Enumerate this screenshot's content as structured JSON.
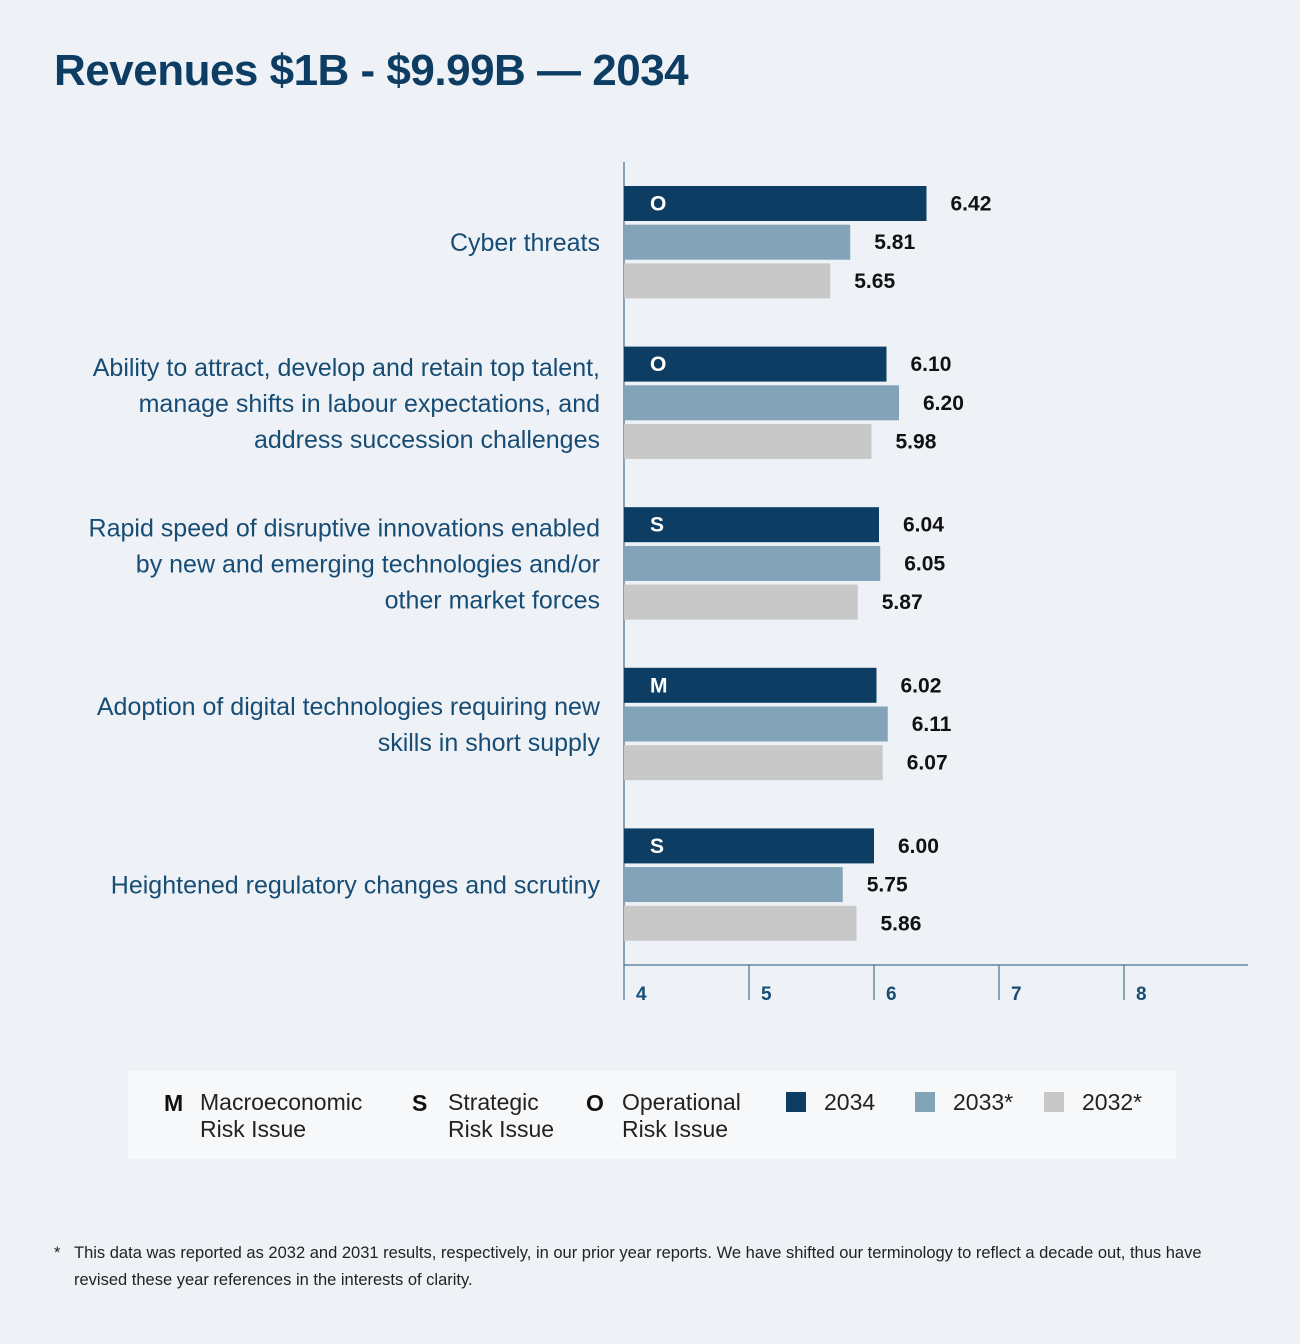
{
  "title": "Revenues $1B - $9.99B — 2034",
  "chart_data": {
    "type": "bar",
    "orientation": "horizontal",
    "categories": [
      [
        "Cyber threats"
      ],
      [
        "Ability to attract, develop and retain top talent,",
        "manage shifts in labour expectations, and",
        "address succession challenges"
      ],
      [
        "Rapid speed of disruptive innovations enabled",
        "by new and emerging technologies and/or",
        "other market forces"
      ],
      [
        "Adoption of digital technologies requiring new",
        "skills in short supply"
      ],
      [
        "Heightened regulatory changes and scrutiny"
      ]
    ],
    "risk_type": [
      "O",
      "O",
      "S",
      "M",
      "S"
    ],
    "series": [
      {
        "name": "2034",
        "color": "#0d3d63",
        "values": [
          6.42,
          6.1,
          6.04,
          6.02,
          6.0
        ],
        "labels": [
          "6.42",
          "6.10",
          "6.04",
          "6.02",
          "6.00"
        ]
      },
      {
        "name": "2033*",
        "color": "#82a3b8",
        "values": [
          5.81,
          6.2,
          6.05,
          6.11,
          5.75
        ],
        "labels": [
          "5.81",
          "6.20",
          "6.05",
          "6.11",
          "5.75"
        ]
      },
      {
        "name": "2032*",
        "color": "#c8c8c8",
        "values": [
          5.65,
          5.98,
          5.87,
          6.07,
          5.86
        ],
        "labels": [
          "5.65",
          "5.98",
          "5.87",
          "6.07",
          "5.86"
        ]
      }
    ],
    "xlim": [
      4,
      9
    ],
    "xticks": [
      "4",
      "5",
      "6",
      "7",
      "8"
    ],
    "grid": false,
    "legend_position": "bottom"
  },
  "legend": {
    "risk_types": [
      {
        "code": "M",
        "lines": [
          "Macroeconomic",
          "Risk Issue"
        ]
      },
      {
        "code": "S",
        "lines": [
          "Strategic",
          "Risk Issue"
        ]
      },
      {
        "code": "O",
        "lines": [
          "Operational",
          "Risk Issue"
        ]
      }
    ],
    "years": [
      "2034",
      "2033*",
      "2032*"
    ]
  },
  "footnote": {
    "marker": "*",
    "text": "This data was reported as 2032 and 2031 results, respectively, in our prior year reports. We have shifted our terminology to reflect a decade out, thus have revised these year references in the interests of clarity."
  }
}
